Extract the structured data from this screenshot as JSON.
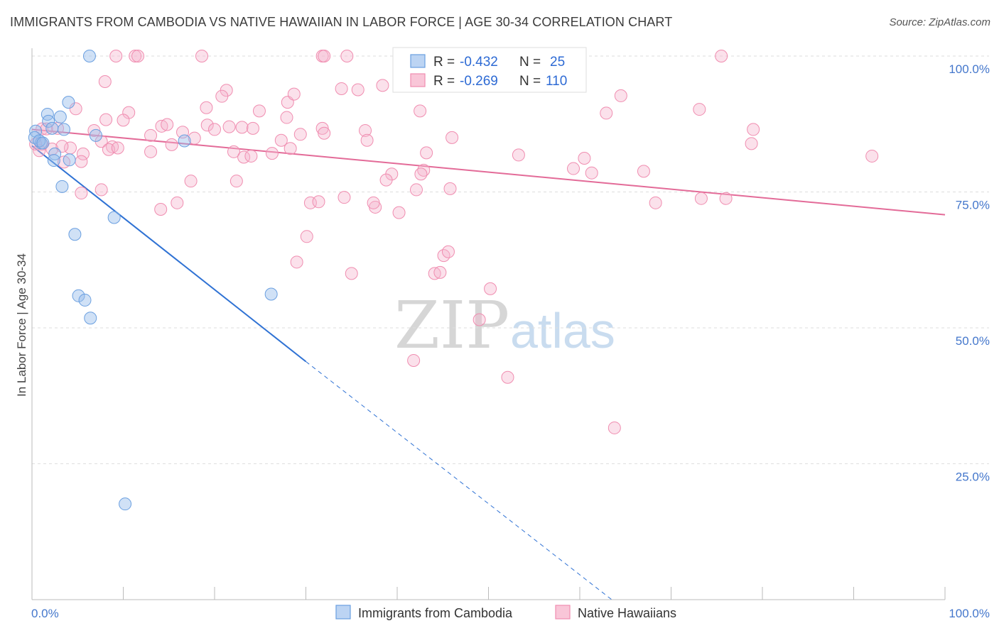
{
  "header": {
    "title": "IMMIGRANTS FROM CAMBODIA VS NATIVE HAWAIIAN IN LABOR FORCE | AGE 30-34 CORRELATION CHART",
    "source": "Source: ZipAtlas.com"
  },
  "watermark": {
    "zip": "ZIP",
    "atlas": "atlas"
  },
  "legend": {
    "series1": {
      "r_label": "R =",
      "r_value": "-0.432",
      "n_label": "N =",
      "n_value": "25",
      "color": "#6a9fe0"
    },
    "series2": {
      "r_label": "R =",
      "r_value": "-0.269",
      "n_label": "N =",
      "n_value": "110",
      "color": "#f08db0"
    }
  },
  "bottom_legend": {
    "series1": "Immigrants from Cambodia",
    "series2": "Native Hawaiians"
  },
  "colors": {
    "blue": "#6a9fe0",
    "blue_line": "#2f72d4",
    "pink": "#f08db0",
    "pink_line": "#e36b98",
    "tick_text": "#4477cc"
  },
  "chart_data": {
    "type": "scatter",
    "xlabel": "",
    "ylabel": "In Labor Force | Age 30-34",
    "x_tick_labels": [
      "0.0%",
      "100.0%"
    ],
    "y_tick_labels": [
      "100.0%",
      "75.0%",
      "50.0%",
      "25.0%"
    ],
    "xlim": [
      0,
      100
    ],
    "ylim": [
      0,
      100
    ],
    "grid": true,
    "series": [
      {
        "name": "Immigrants from Cambodia",
        "color": "#6a9fe0",
        "points": [
          [
            6.3,
            100.0
          ],
          [
            0.4,
            86.2
          ],
          [
            0.3,
            85.0
          ],
          [
            1.0,
            84.0
          ],
          [
            1.7,
            89.3
          ],
          [
            1.8,
            88.0
          ],
          [
            2.2,
            86.7
          ],
          [
            3.1,
            88.8
          ],
          [
            3.5,
            86.5
          ],
          [
            4.0,
            91.5
          ],
          [
            4.1,
            80.9
          ],
          [
            2.5,
            82.0
          ],
          [
            2.4,
            80.8
          ],
          [
            0.8,
            84.4
          ],
          [
            1.2,
            84.0
          ],
          [
            7.0,
            85.4
          ],
          [
            16.7,
            84.4
          ],
          [
            3.3,
            76.0
          ],
          [
            4.7,
            67.2
          ],
          [
            9.0,
            70.3
          ],
          [
            5.1,
            55.9
          ],
          [
            5.8,
            55.1
          ],
          [
            6.4,
            51.8
          ],
          [
            26.2,
            56.2
          ],
          [
            10.2,
            17.6
          ]
        ],
        "trend": {
          "x": [
            0.0,
            30.0
          ],
          "y": [
            83.5,
            43.8
          ],
          "dashed_to": [
            63.5,
            0.0
          ]
        }
      },
      {
        "name": "Native Hawaiians",
        "color": "#f08db0",
        "points": [
          [
            9.2,
            100.0
          ],
          [
            11.3,
            100.0
          ],
          [
            11.6,
            100.0
          ],
          [
            18.6,
            100.0
          ],
          [
            31.8,
            100.0
          ],
          [
            32.0,
            100.0
          ],
          [
            34.5,
            100.0
          ],
          [
            75.5,
            100.0
          ],
          [
            8.0,
            95.3
          ],
          [
            21.3,
            93.7
          ],
          [
            20.8,
            92.6
          ],
          [
            33.9,
            94.0
          ],
          [
            35.7,
            93.8
          ],
          [
            38.4,
            94.6
          ],
          [
            28.0,
            91.5
          ],
          [
            28.7,
            93.0
          ],
          [
            64.5,
            92.7
          ],
          [
            19.1,
            90.5
          ],
          [
            24.9,
            89.9
          ],
          [
            4.8,
            90.3
          ],
          [
            10.6,
            89.6
          ],
          [
            10.0,
            88.2
          ],
          [
            14.2,
            87.1
          ],
          [
            14.8,
            87.4
          ],
          [
            19.2,
            87.3
          ],
          [
            20.0,
            86.5
          ],
          [
            21.6,
            87.0
          ],
          [
            23.0,
            86.9
          ],
          [
            24.2,
            86.7
          ],
          [
            27.9,
            88.7
          ],
          [
            29.4,
            85.6
          ],
          [
            31.8,
            86.7
          ],
          [
            36.5,
            86.3
          ],
          [
            42.5,
            89.9
          ],
          [
            62.9,
            89.5
          ],
          [
            73.1,
            90.2
          ],
          [
            79.0,
            86.5
          ],
          [
            16.5,
            86.0
          ],
          [
            13.0,
            85.4
          ],
          [
            6.8,
            86.3
          ],
          [
            7.6,
            84.3
          ],
          [
            8.8,
            83.3
          ],
          [
            4.2,
            83.1
          ],
          [
            5.6,
            82.0
          ],
          [
            5.4,
            80.6
          ],
          [
            1.1,
            83.8
          ],
          [
            0.4,
            83.8
          ],
          [
            0.8,
            82.6
          ],
          [
            2.2,
            82.9
          ],
          [
            3.3,
            83.4
          ],
          [
            8.4,
            82.8
          ],
          [
            13.0,
            82.4
          ],
          [
            15.3,
            83.7
          ],
          [
            22.1,
            82.4
          ],
          [
            23.2,
            81.4
          ],
          [
            24.0,
            81.6
          ],
          [
            28.3,
            83.0
          ],
          [
            27.3,
            84.5
          ],
          [
            36.7,
            84.5
          ],
          [
            46.0,
            85.0
          ],
          [
            43.2,
            82.2
          ],
          [
            53.3,
            81.8
          ],
          [
            60.5,
            81.2
          ],
          [
            59.3,
            79.3
          ],
          [
            61.3,
            78.5
          ],
          [
            67.0,
            78.8
          ],
          [
            78.8,
            83.9
          ],
          [
            92.0,
            81.6
          ],
          [
            1.1,
            86.6
          ],
          [
            3.5,
            80.5
          ],
          [
            7.6,
            75.4
          ],
          [
            5.4,
            74.8
          ],
          [
            17.4,
            77.0
          ],
          [
            22.4,
            77.0
          ],
          [
            39.4,
            78.3
          ],
          [
            38.8,
            77.2
          ],
          [
            42.9,
            79.0
          ],
          [
            45.8,
            75.6
          ],
          [
            42.1,
            75.4
          ],
          [
            68.3,
            73.0
          ],
          [
            73.3,
            73.8
          ],
          [
            76.0,
            73.8
          ],
          [
            14.1,
            71.8
          ],
          [
            15.9,
            73.0
          ],
          [
            30.5,
            73.0
          ],
          [
            31.4,
            73.2
          ],
          [
            34.2,
            74.0
          ],
          [
            37.6,
            72.2
          ],
          [
            37.4,
            73.0
          ],
          [
            40.2,
            71.2
          ],
          [
            30.1,
            66.8
          ],
          [
            29.0,
            62.1
          ],
          [
            35.0,
            60.0
          ],
          [
            44.1,
            60.0
          ],
          [
            44.7,
            60.2
          ],
          [
            45.1,
            63.3
          ],
          [
            45.6,
            64.0
          ],
          [
            50.2,
            57.2
          ],
          [
            49.0,
            51.5
          ],
          [
            41.8,
            44.0
          ],
          [
            52.1,
            40.9
          ],
          [
            63.8,
            31.6
          ],
          [
            9.4,
            83.1
          ],
          [
            17.8,
            84.9
          ],
          [
            32.0,
            85.8
          ],
          [
            26.3,
            82.1
          ],
          [
            8.1,
            88.3
          ],
          [
            2.8,
            86.7
          ],
          [
            1.6,
            86.6
          ],
          [
            42.6,
            78.3
          ]
        ],
        "trend": {
          "x": [
            0.0,
            100.0
          ],
          "y": [
            86.5,
            70.8
          ]
        }
      }
    ]
  }
}
